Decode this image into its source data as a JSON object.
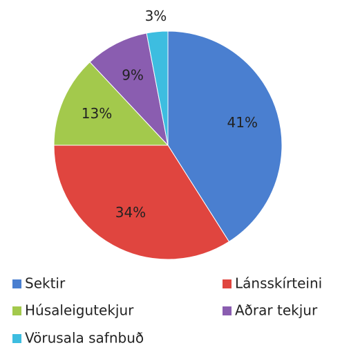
{
  "chart_data": {
    "type": "pie",
    "categories": [
      "Sektir",
      "Lánsskírteini",
      "Húsaleigutekjur",
      "Aðrar tekjur",
      "Vörusala safnbuð"
    ],
    "values": [
      41,
      34,
      13,
      9,
      3
    ],
    "value_labels": [
      "41%",
      "34%",
      "13%",
      "9%",
      "3%"
    ],
    "colors": [
      "#4a7fd0",
      "#e0453f",
      "#a3c94c",
      "#8a5db0",
      "#3dbde0"
    ],
    "legend": "bottom"
  }
}
